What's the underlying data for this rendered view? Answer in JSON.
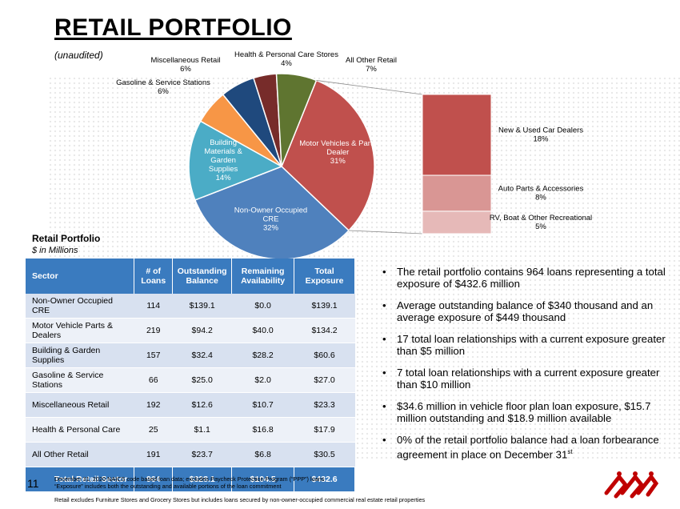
{
  "header": {
    "title": "RETAIL PORTFOLIO",
    "subtitle": "(unaudited)"
  },
  "chart_data": [
    {
      "type": "pie",
      "slices": [
        {
          "label": "Motor Vehicles & Parts Dealer",
          "value": 31,
          "pct": "31%",
          "color": "#c0504d"
        },
        {
          "label": "Non-Owner Occupied CRE",
          "value": 32,
          "pct": "32%",
          "color": "#4f81bd"
        },
        {
          "label": "Building Materials & Garden Supplies",
          "value": 14,
          "pct": "14%",
          "color": "#4bacc6"
        },
        {
          "label": "Gasoline & Service Stations",
          "value": 6,
          "pct": "6%",
          "color": "#f79646"
        },
        {
          "label": "Miscellaneous Retail",
          "value": 6,
          "pct": "6%",
          "color": "#1f497d"
        },
        {
          "label": "Health & Personal Care Stores",
          "value": 4,
          "pct": "4%",
          "color": "#772c2a"
        },
        {
          "label": "All Other Retail",
          "value": 7,
          "pct": "7%",
          "color": "#5f7530"
        }
      ]
    },
    {
      "type": "bar",
      "stacked": true,
      "segments": [
        {
          "label": "New & Used Car Dealers",
          "value": 18,
          "pct": "18%",
          "color": "#c0504d"
        },
        {
          "label": "Auto Parts & Accessories",
          "value": 8,
          "pct": "8%",
          "color": "#d99694"
        },
        {
          "label": "RV, Boat & Other Recreational",
          "value": 5,
          "pct": "5%",
          "color": "#e6b9b8"
        }
      ]
    }
  ],
  "table": {
    "title": "Retail Portfolio",
    "units": "$ in Millions",
    "headers": [
      "Sector",
      "# of Loans",
      "Outstanding Balance",
      "Remaining Availability",
      "Total Exposure"
    ],
    "rows": [
      {
        "sector": "Non-Owner Occupied CRE",
        "loans": "114",
        "outstanding": "$139.1",
        "remaining": "$0.0",
        "total": "$139.1"
      },
      {
        "sector": "Motor Vehicle Parts & Dealers",
        "loans": "219",
        "outstanding": "$94.2",
        "remaining": "$40.0",
        "total": "$134.2"
      },
      {
        "sector": "Building & Garden Supplies",
        "loans": "157",
        "outstanding": "$32.4",
        "remaining": "$28.2",
        "total": "$60.6"
      },
      {
        "sector": "Gasoline & Service Stations",
        "loans": "66",
        "outstanding": "$25.0",
        "remaining": "$2.0",
        "total": "$27.0"
      },
      {
        "sector": "Miscellaneous Retail",
        "loans": "192",
        "outstanding": "$12.6",
        "remaining": "$10.7",
        "total": "$23.3"
      },
      {
        "sector": "Health & Personal Care",
        "loans": "25",
        "outstanding": "$1.1",
        "remaining": "$16.8",
        "total": "$17.9"
      },
      {
        "sector": "All Other Retail",
        "loans": "191",
        "outstanding": "$23.7",
        "remaining": "$6.8",
        "total": "$30.5"
      }
    ],
    "total": {
      "sector": "Total Retail Sector",
      "loans": "964",
      "outstanding": "$328.1",
      "remaining": "$104.5",
      "total": "$432.6"
    }
  },
  "bullets": [
    "The retail portfolio contains 964 loans representing a total exposure of $432.6 million",
    "Average outstanding balance of $340 thousand and an average exposure of $449 thousand",
    "17 total loan relationships with a current exposure greater than $5 million",
    "7 total loan relationships with a current exposure greater than $10 million",
    "$34.6 million in vehicle floor plan loan exposure, $15.7 million outstanding and $18.9 million available"
  ],
  "bullet_last": {
    "text": "0% of the retail portfolio balance had a loan forbearance agreement in place on December 31",
    "sup": "st"
  },
  "footer": {
    "page_number": "11",
    "note1": "December 31, 2020 NAICS code based loan data; excludes Paycheck Protection Program (“PPP”) loans",
    "note2": "“Exposure” includes both the outstanding and available portions of the loan commitment",
    "note3": "Retail excludes Furniture Stores and Grocery Stores but includes loans secured by non-owner-occupied commercial real estate retail properties"
  },
  "logo": {
    "icon": "company-logo-icon",
    "color": "#c00000"
  }
}
